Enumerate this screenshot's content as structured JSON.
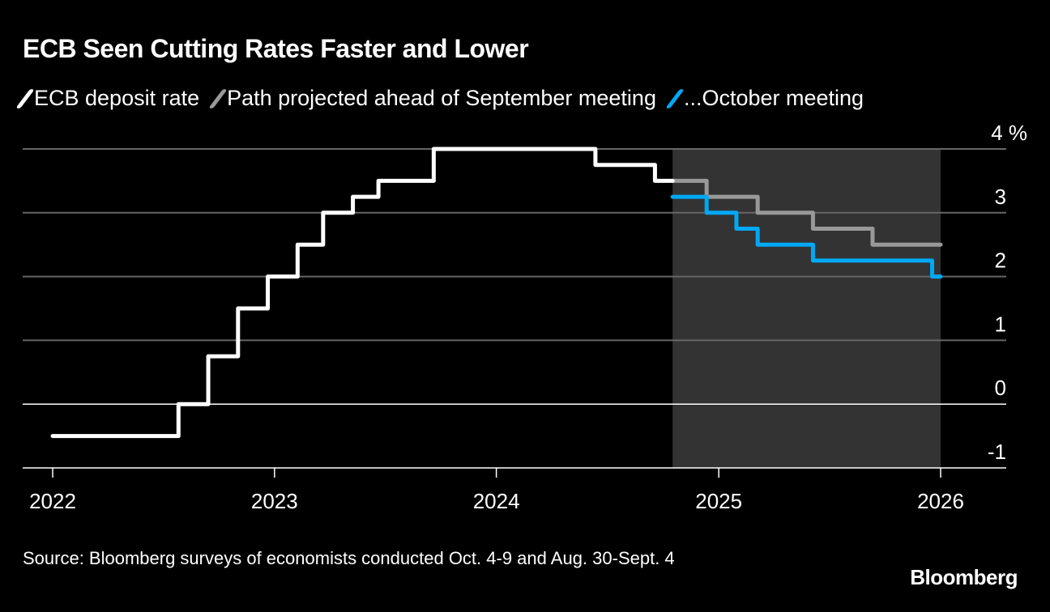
{
  "chart_data": {
    "type": "line",
    "title": "ECB Seen Cutting Rates Faster and Lower",
    "ylabel": "",
    "xlabel": "",
    "y_unit": "%",
    "ylim": [
      -1,
      4
    ],
    "yticks": [
      4,
      3,
      2,
      1,
      0,
      -1
    ],
    "xlim": [
      "2022-01-01",
      "2026-01-01"
    ],
    "xticks": [
      "2022",
      "2023",
      "2024",
      "2025",
      "2026"
    ],
    "grid": "horizontal",
    "legend_placement": "top",
    "shaded_region": {
      "from": "2024-10-17",
      "to": "2026-01-01",
      "color": "#333333"
    },
    "series": [
      {
        "name": "ECB deposit rate",
        "color": "#ffffff",
        "step": true,
        "points": [
          [
            "2022-01-01",
            -0.5
          ],
          [
            "2022-07-27",
            0
          ],
          [
            "2022-09-14",
            0.75
          ],
          [
            "2022-11-02",
            1.5
          ],
          [
            "2022-12-21",
            2.0
          ],
          [
            "2023-02-08",
            2.5
          ],
          [
            "2023-03-22",
            3.0
          ],
          [
            "2023-05-10",
            3.25
          ],
          [
            "2023-06-21",
            3.5
          ],
          [
            "2023-09-20",
            4.0
          ],
          [
            "2024-06-12",
            3.75
          ],
          [
            "2024-09-18",
            3.5
          ],
          [
            "2024-10-17",
            3.5
          ]
        ]
      },
      {
        "name": "Path projected ahead of September meeting",
        "color": "#999999",
        "step": true,
        "points": [
          [
            "2024-10-17",
            3.5
          ],
          [
            "2024-12-12",
            3.25
          ],
          [
            "2025-03-06",
            3.0
          ],
          [
            "2025-06-05",
            2.75
          ],
          [
            "2025-09-11",
            2.5
          ],
          [
            "2026-01-01",
            2.5
          ]
        ]
      },
      {
        "name": "...October meeting",
        "color": "#00a9f4",
        "step": true,
        "points": [
          [
            "2024-10-17",
            3.25
          ],
          [
            "2024-12-12",
            3.0
          ],
          [
            "2025-01-30",
            2.75
          ],
          [
            "2025-03-06",
            2.5
          ],
          [
            "2025-06-05",
            2.25
          ],
          [
            "2025-12-18",
            2.0
          ],
          [
            "2026-01-01",
            2.0
          ]
        ]
      }
    ]
  },
  "footer": {
    "source": "Source: Bloomberg surveys of economists conducted Oct. 4-9 and Aug. 30-Sept. 4",
    "logo": "Bloomberg"
  }
}
